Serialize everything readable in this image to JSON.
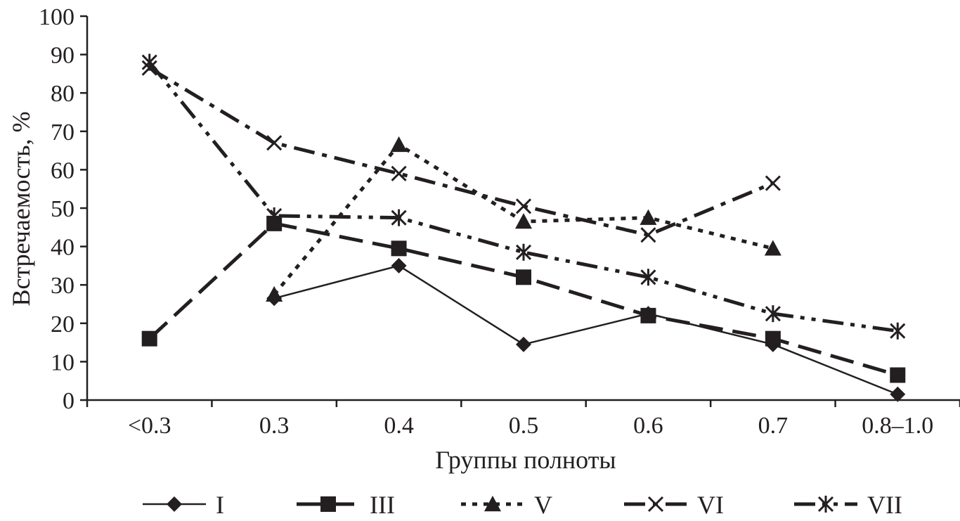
{
  "chart_data": {
    "type": "line",
    "title": "",
    "xlabel": "Группы полноты",
    "ylabel": "Встречаемость, %",
    "ylim": [
      0,
      100
    ],
    "yticks": [
      0,
      10,
      20,
      30,
      40,
      50,
      60,
      70,
      80,
      90,
      100
    ],
    "grid": false,
    "legend_position": "bottom",
    "categories": [
      "<0.3",
      "0.3",
      "0.4",
      "0.5",
      "0.6",
      "0.7",
      "0.8–1.0"
    ],
    "series": [
      {
        "name": "I",
        "marker": "diamond",
        "dash": "solid",
        "values": [
          null,
          26.5,
          35,
          14.5,
          22.5,
          14.5,
          1.5
        ]
      },
      {
        "name": "III",
        "marker": "square",
        "dash": "long-dash",
        "values": [
          16,
          46,
          39.5,
          32,
          22,
          16,
          6.5
        ]
      },
      {
        "name": "V",
        "marker": "triangle",
        "dash": "dotted",
        "values": [
          null,
          27.5,
          66.5,
          46.5,
          47.5,
          39.5,
          null
        ]
      },
      {
        "name": "VI",
        "marker": "x",
        "dash": "dash-dot",
        "values": [
          86.5,
          67,
          59,
          50.5,
          43,
          56.5,
          null
        ]
      },
      {
        "name": "VII",
        "marker": "asterisk",
        "dash": "dash-dot-dot",
        "values": [
          88,
          48,
          47.5,
          38.5,
          32,
          22.5,
          18
        ]
      }
    ]
  }
}
